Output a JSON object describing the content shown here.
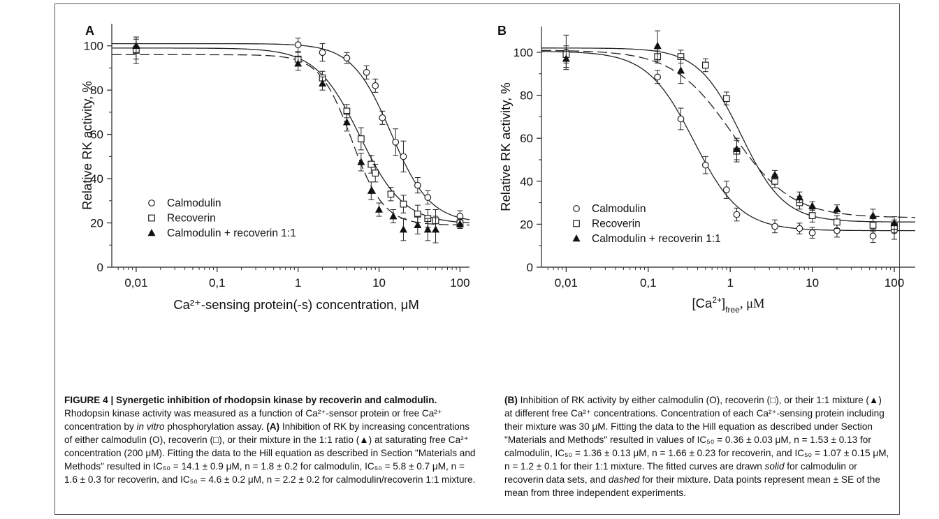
{
  "figure": {
    "label": "FIGURE 4 | Synergetic inhibition of rhodopsin kinase by recoverin and calmodulin."
  },
  "caption_left": {
    "intro": "Rhodopsin kinase activity was measured as a function of Ca²⁺-sensor protein or free Ca²⁺ concentration by",
    "intro_em": "in vitro",
    "intro_end": "phosphorylation assay.",
    "panel_a_tag": "(A)",
    "panel_a_text": "Inhibition of RK by increasing concentrations of either calmodulin (O), recoverin (□), or their mixture in the 1:1 ratio (▲) at saturating free Ca²⁺ concentration (200 μM). Fitting the data to the Hill equation as described in Section \"Materials and Methods\" resulted in IC₅₀ = 14.1 ± 0.9 μM, n = 1.8 ± 0.2 for calmodulin, IC₅₀ = 5.8 ± 0.7 μM, n = 1.6 ± 0.3 for recoverin, and IC₅₀ = 4.6 ± 0.2 μM, n = 2.2 ± 0.2 for calmodulin/recoverin 1:1 mixture."
  },
  "caption_right": {
    "panel_b_tag": "(B)",
    "text_1": "Inhibition of RK activity by either calmodulin (O), recoverin (□), or their 1:1 mixture (▲) at different free Ca²⁺ concentrations. Concentration of each Ca²⁺-sensing protein including their mixture was 30 μM. Fitting the data to the Hill equation as described under Section \"Materials and Methods\" resulted in values of IC₅₀ = 0.36 ± 0.03 μM, n = 1.53 ± 0.13 for calmodulin, IC₅₀ = 1.36 ± 0.13 μM, n = 1.66 ± 0.23 for recoverin, and IC₅₀ = 1.07 ± 0.15 μM, n = 1.2 ± 0.1 for their 1:1 mixture. The fitted curves are drawn",
    "solid_em": "solid",
    "text_2": "for calmodulin or recoverin data sets, and",
    "dashed_em": "dashed",
    "text_3": "for their mixture. Data points represent mean ± SE of the mean from three independent experiments."
  },
  "chart_data": [
    {
      "panel": "A",
      "type": "scatter",
      "xlabel": "Ca²⁺-sensing protein(-s) concentration, μM",
      "ylabel": "Relative RK activity, %",
      "x_scale": "log",
      "xlim": [
        0.005,
        180
      ],
      "ylim": [
        0,
        110
      ],
      "x_ticks": [
        "0,01",
        "0,1",
        "1",
        "10",
        "100"
      ],
      "x_tick_values": [
        0.01,
        0.1,
        1,
        10,
        100
      ],
      "y_ticks": [
        "0",
        "20",
        "40",
        "60",
        "80",
        "100"
      ],
      "y_tick_values": [
        0,
        20,
        40,
        60,
        80,
        100
      ],
      "legend_position": "bottom-left",
      "series": [
        {
          "name": "Calmodulin",
          "marker": "circle",
          "fit": {
            "style": "solid",
            "top": 101,
            "bottom": 20,
            "ic50": 14.1,
            "n": 1.8
          },
          "points": [
            {
              "x": 0.01,
              "y": 99,
              "err": 5
            },
            {
              "x": 1,
              "y": 100.5,
              "err": 3
            },
            {
              "x": 2,
              "y": 97,
              "err": 4
            },
            {
              "x": 4,
              "y": 94.5,
              "err": 2.5
            },
            {
              "x": 7,
              "y": 88,
              "err": 3
            },
            {
              "x": 9,
              "y": 82,
              "err": 3
            },
            {
              "x": 11,
              "y": 67.5,
              "err": 3
            },
            {
              "x": 16,
              "y": 56.5,
              "err": 6
            },
            {
              "x": 20,
              "y": 50,
              "err": 7
            },
            {
              "x": 30,
              "y": 37,
              "err": 3.5
            },
            {
              "x": 40,
              "y": 31.5,
              "err": 3
            },
            {
              "x": 100,
              "y": 23,
              "err": 2.5
            }
          ]
        },
        {
          "name": "Recoverin",
          "marker": "square",
          "fit": {
            "style": "solid",
            "top": 99,
            "bottom": 19.5,
            "ic50": 5.8,
            "n": 1.6
          },
          "points": [
            {
              "x": 0.01,
              "y": 98,
              "err": 6
            },
            {
              "x": 1,
              "y": 94,
              "err": 3
            },
            {
              "x": 2,
              "y": 85.5,
              "err": 3
            },
            {
              "x": 4,
              "y": 70.5,
              "err": 3
            },
            {
              "x": 6,
              "y": 58,
              "err": 5
            },
            {
              "x": 8,
              "y": 46.5,
              "err": 4
            },
            {
              "x": 9,
              "y": 42.5,
              "err": 4
            },
            {
              "x": 14,
              "y": 33,
              "err": 3
            },
            {
              "x": 20,
              "y": 28.5,
              "err": 4
            },
            {
              "x": 30,
              "y": 24,
              "err": 4
            },
            {
              "x": 40,
              "y": 22,
              "err": 4
            },
            {
              "x": 50,
              "y": 21,
              "err": 5
            },
            {
              "x": 100,
              "y": 20,
              "err": 2
            }
          ]
        },
        {
          "name": "Calmodulin + recoverin 1:1",
          "marker": "triangle",
          "fit": {
            "style": "dashed",
            "top": 96,
            "bottom": 19,
            "ic50": 4.6,
            "n": 2.2
          },
          "points": [
            {
              "x": 0.01,
              "y": 100,
              "err": 3
            },
            {
              "x": 1,
              "y": 92,
              "err": 3
            },
            {
              "x": 2,
              "y": 83,
              "err": 3
            },
            {
              "x": 4,
              "y": 65.5,
              "err": 4
            },
            {
              "x": 6,
              "y": 47.5,
              "err": 4
            },
            {
              "x": 8,
              "y": 34.5,
              "err": 4
            },
            {
              "x": 10,
              "y": 26,
              "err": 3
            },
            {
              "x": 15,
              "y": 23,
              "err": 3
            },
            {
              "x": 20,
              "y": 17,
              "err": 5
            },
            {
              "x": 30,
              "y": 19,
              "err": 4
            },
            {
              "x": 40,
              "y": 17,
              "err": 5
            },
            {
              "x": 50,
              "y": 17,
              "err": 6
            },
            {
              "x": 100,
              "y": 19.5,
              "err": 2
            }
          ]
        }
      ]
    },
    {
      "panel": "B",
      "type": "scatter",
      "xlabel_main": "[Ca",
      "xlabel_sup": "2+",
      "xlabel_close": "]",
      "xlabel_sub": "free",
      "xlabel_unit": ", μM",
      "ylabel": "Relative RK activity, %",
      "x_scale": "log",
      "xlim": [
        0.005,
        180
      ],
      "ylim": [
        0,
        112
      ],
      "x_ticks": [
        "0,01",
        "0,1",
        "1",
        "10",
        "100"
      ],
      "x_tick_values": [
        0.01,
        0.1,
        1,
        10,
        100
      ],
      "y_ticks": [
        "0",
        "20",
        "40",
        "60",
        "80",
        "100"
      ],
      "y_tick_values": [
        0,
        20,
        40,
        60,
        80,
        100
      ],
      "legend_position": "bottom-left",
      "series": [
        {
          "name": "Calmodulin",
          "marker": "circle",
          "fit": {
            "style": "solid",
            "top": 100.5,
            "bottom": 17,
            "ic50": 0.36,
            "n": 1.53
          },
          "points": [
            {
              "x": 0.01,
              "y": 100,
              "err": 8
            },
            {
              "x": 0.13,
              "y": 88.5,
              "err": 3
            },
            {
              "x": 0.25,
              "y": 69,
              "err": 5
            },
            {
              "x": 0.5,
              "y": 47.5,
              "err": 4
            },
            {
              "x": 0.9,
              "y": 36,
              "err": 4
            },
            {
              "x": 1.2,
              "y": 24.5,
              "err": 3
            },
            {
              "x": 3.5,
              "y": 19,
              "err": 3
            },
            {
              "x": 7,
              "y": 18,
              "err": 2.5
            },
            {
              "x": 10,
              "y": 16,
              "err": 2.5
            },
            {
              "x": 20,
              "y": 17,
              "err": 3
            },
            {
              "x": 55,
              "y": 14.5,
              "err": 3
            },
            {
              "x": 100,
              "y": 17,
              "err": 4
            }
          ]
        },
        {
          "name": "Recoverin",
          "marker": "square",
          "fit": {
            "style": "solid",
            "top": 102,
            "bottom": 21,
            "ic50": 1.36,
            "n": 1.66
          },
          "points": [
            {
              "x": 0.01,
              "y": 99,
              "err": 4
            },
            {
              "x": 0.13,
              "y": 98,
              "err": 3
            },
            {
              "x": 0.25,
              "y": 98,
              "err": 3
            },
            {
              "x": 0.5,
              "y": 94,
              "err": 3
            },
            {
              "x": 0.9,
              "y": 78.5,
              "err": 3
            },
            {
              "x": 1.2,
              "y": 54,
              "err": 5
            },
            {
              "x": 3.5,
              "y": 40,
              "err": 3
            },
            {
              "x": 7,
              "y": 30,
              "err": 3
            },
            {
              "x": 10,
              "y": 24,
              "err": 3
            },
            {
              "x": 20,
              "y": 21,
              "err": 3
            },
            {
              "x": 55,
              "y": 19.5,
              "err": 3
            },
            {
              "x": 100,
              "y": 19,
              "err": 3
            }
          ]
        },
        {
          "name": "Calmodulin + recoverin 1:1",
          "marker": "triangle",
          "fit": {
            "style": "dashed",
            "top": 101,
            "bottom": 23,
            "ic50": 1.07,
            "n": 1.2
          },
          "points": [
            {
              "x": 0.01,
              "y": 97,
              "err": 4
            },
            {
              "x": 0.13,
              "y": 103,
              "err": 7
            },
            {
              "x": 0.25,
              "y": 91.5,
              "err": 6
            },
            {
              "x": 1.2,
              "y": 55,
              "err": 5
            },
            {
              "x": 3.5,
              "y": 43,
              "err": 2
            },
            {
              "x": 7,
              "y": 32.5,
              "err": 2.5
            },
            {
              "x": 10,
              "y": 28.5,
              "err": 2
            },
            {
              "x": 20,
              "y": 27,
              "err": 2
            },
            {
              "x": 55,
              "y": 24,
              "err": 3
            },
            {
              "x": 100,
              "y": 20.5,
              "err": 3
            }
          ]
        }
      ]
    }
  ]
}
